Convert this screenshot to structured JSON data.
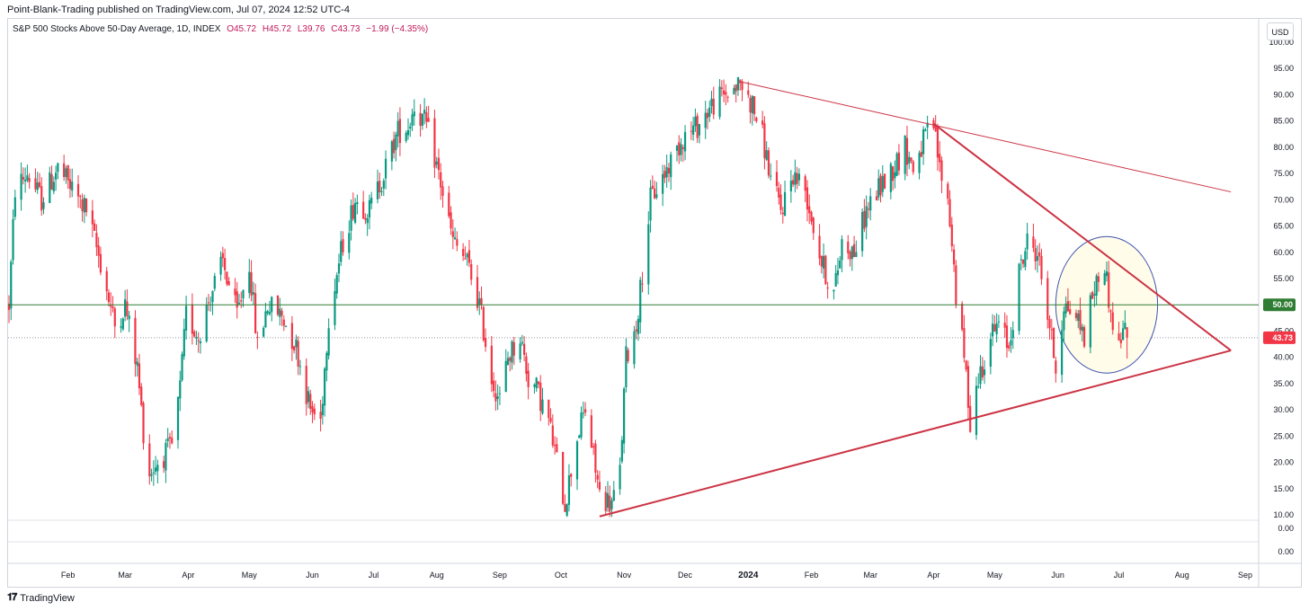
{
  "header": {
    "publisher_line": "Point-Blank-Trading published on TradingView.com, Jul 07, 2024 12:52 UTC-4"
  },
  "legend": {
    "symbol": "S&P 500 Stocks Above 50-Day Average, 1D, INDEX",
    "open": "O45.72",
    "high": "H45.72",
    "low": "L39.76",
    "close": "C43.73",
    "change": "−1.99 (−4.35%)"
  },
  "currency_button": "USD",
  "footer": {
    "brand": "TradingView"
  },
  "colors": {
    "up": "#089981",
    "down": "#f23645",
    "trendline": "#cc3344",
    "level": "#2e7d32",
    "circle": "#4055b0",
    "circle_fill": "#fffbe6"
  },
  "chart_data": {
    "type": "candlestick",
    "title": "S&P 500 Stocks Above 50-Day Average, 1D, INDEX",
    "y_axis": {
      "ticks": [
        "100.00",
        "95.00",
        "90.00",
        "85.00",
        "80.00",
        "75.00",
        "70.00",
        "65.00",
        "60.00",
        "55.00",
        "50.00",
        "45.00",
        "40.00",
        "35.00",
        "30.00",
        "25.00",
        "20.00",
        "15.00",
        "10.00"
      ],
      "ylim": [
        10,
        100
      ]
    },
    "sub_pane_ticks": [
      "0.00",
      "0.00"
    ],
    "x_axis": {
      "ticks": [
        {
          "label": "Feb",
          "bold": false
        },
        {
          "label": "Mar",
          "bold": false
        },
        {
          "label": "Apr",
          "bold": false
        },
        {
          "label": "May",
          "bold": false
        },
        {
          "label": "Jun",
          "bold": false
        },
        {
          "label": "Jul",
          "bold": false
        },
        {
          "label": "Aug",
          "bold": false
        },
        {
          "label": "Sep",
          "bold": false
        },
        {
          "label": "Oct",
          "bold": false
        },
        {
          "label": "Nov",
          "bold": false
        },
        {
          "label": "Dec",
          "bold": false
        },
        {
          "label": "2024",
          "bold": true
        },
        {
          "label": "Feb",
          "bold": false
        },
        {
          "label": "Mar",
          "bold": false
        },
        {
          "label": "Apr",
          "bold": false
        },
        {
          "label": "May",
          "bold": false
        },
        {
          "label": "Jun",
          "bold": false
        },
        {
          "label": "Jul",
          "bold": false
        },
        {
          "label": "Aug",
          "bold": false
        },
        {
          "label": "Sep",
          "bold": false
        }
      ]
    },
    "horizontal_level": {
      "value": 50,
      "label": "50.00"
    },
    "last_price": {
      "value": 43.73,
      "label": "43.73"
    },
    "trendlines": [
      {
        "from": {
          "date": "2023-12-28",
          "value": 92.5
        },
        "to": {
          "date": "2024-08-25",
          "value": 71.5
        }
      },
      {
        "from": {
          "date": "2024-04-01",
          "value": 84.5
        },
        "to": {
          "date": "2024-08-25",
          "value": 41.3
        }
      },
      {
        "from": {
          "date": "2023-10-20",
          "value": 9.7
        },
        "to": {
          "date": "2024-08-25",
          "value": 41.3
        }
      }
    ],
    "highlight_circle": {
      "center_date": "2024-06-25",
      "center_value": 50,
      "radius_days": 25,
      "radius_value": 13
    },
    "waypoints": [
      [
        "2023-01-03",
        50
      ],
      [
        "2023-01-06",
        72
      ],
      [
        "2023-01-12",
        75
      ],
      [
        "2023-01-19",
        70
      ],
      [
        "2023-01-27",
        76
      ],
      [
        "2023-02-03",
        72
      ],
      [
        "2023-02-10",
        68
      ],
      [
        "2023-02-17",
        58
      ],
      [
        "2023-02-24",
        46
      ],
      [
        "2023-03-01",
        50
      ],
      [
        "2023-03-07",
        38
      ],
      [
        "2023-03-10",
        26
      ],
      [
        "2023-03-13",
        18
      ],
      [
        "2023-03-17",
        20
      ],
      [
        "2023-03-24",
        23
      ],
      [
        "2023-03-28",
        34
      ],
      [
        "2023-03-31",
        48
      ],
      [
        "2023-04-06",
        44
      ],
      [
        "2023-04-12",
        52
      ],
      [
        "2023-04-18",
        58
      ],
      [
        "2023-04-25",
        48
      ],
      [
        "2023-05-01",
        58
      ],
      [
        "2023-05-05",
        42
      ],
      [
        "2023-05-10",
        50
      ],
      [
        "2023-05-17",
        48
      ],
      [
        "2023-05-24",
        42
      ],
      [
        "2023-05-31",
        30
      ],
      [
        "2023-06-05",
        28
      ],
      [
        "2023-06-09",
        48
      ],
      [
        "2023-06-16",
        62
      ],
      [
        "2023-06-22",
        70
      ],
      [
        "2023-06-29",
        68
      ],
      [
        "2023-07-06",
        75
      ],
      [
        "2023-07-13",
        83
      ],
      [
        "2023-07-18",
        84
      ],
      [
        "2023-07-21",
        88
      ],
      [
        "2023-07-27",
        84
      ],
      [
        "2023-08-02",
        75
      ],
      [
        "2023-08-09",
        62
      ],
      [
        "2023-08-16",
        58
      ],
      [
        "2023-08-22",
        50
      ],
      [
        "2023-08-28",
        36
      ],
      [
        "2023-09-01",
        32
      ],
      [
        "2023-09-05",
        40
      ],
      [
        "2023-09-11",
        44
      ],
      [
        "2023-09-15",
        36
      ],
      [
        "2023-09-19",
        34
      ],
      [
        "2023-09-25",
        28
      ],
      [
        "2023-10-03",
        12
      ],
      [
        "2023-10-09",
        25
      ],
      [
        "2023-10-13",
        30
      ],
      [
        "2023-10-20",
        14
      ],
      [
        "2023-10-26",
        12
      ],
      [
        "2023-10-30",
        18
      ],
      [
        "2023-11-02",
        40
      ],
      [
        "2023-11-07",
        46
      ],
      [
        "2023-11-14",
        70
      ],
      [
        "2023-11-21",
        75
      ],
      [
        "2023-11-30",
        82
      ],
      [
        "2023-12-07",
        84
      ],
      [
        "2023-12-14",
        88
      ],
      [
        "2023-12-20",
        90
      ],
      [
        "2023-12-28",
        92
      ],
      [
        "2024-01-03",
        88
      ],
      [
        "2024-01-08",
        82
      ],
      [
        "2024-01-12",
        74
      ],
      [
        "2024-01-17",
        68
      ],
      [
        "2024-01-23",
        75
      ],
      [
        "2024-01-29",
        72
      ],
      [
        "2024-02-02",
        65
      ],
      [
        "2024-02-06",
        58
      ],
      [
        "2024-02-12",
        52
      ],
      [
        "2024-02-16",
        62
      ],
      [
        "2024-02-22",
        60
      ],
      [
        "2024-02-28",
        68
      ],
      [
        "2024-03-05",
        72
      ],
      [
        "2024-03-12",
        76
      ],
      [
        "2024-03-18",
        80
      ],
      [
        "2024-03-22",
        76
      ],
      [
        "2024-03-28",
        82
      ],
      [
        "2024-04-01",
        84
      ],
      [
        "2024-04-04",
        76
      ],
      [
        "2024-04-08",
        70
      ],
      [
        "2024-04-10",
        62
      ],
      [
        "2024-04-12",
        52
      ],
      [
        "2024-04-16",
        40
      ],
      [
        "2024-04-19",
        28
      ],
      [
        "2024-04-23",
        36
      ],
      [
        "2024-04-29",
        44
      ],
      [
        "2024-05-03",
        46
      ],
      [
        "2024-05-08",
        42
      ],
      [
        "2024-05-13",
        56
      ],
      [
        "2024-05-17",
        62
      ],
      [
        "2024-05-22",
        60
      ],
      [
        "2024-05-28",
        46
      ],
      [
        "2024-05-31",
        38
      ],
      [
        "2024-06-04",
        50
      ],
      [
        "2024-06-10",
        48
      ],
      [
        "2024-06-14",
        44
      ],
      [
        "2024-06-18",
        52
      ],
      [
        "2024-06-24",
        58
      ],
      [
        "2024-06-27",
        48
      ],
      [
        "2024-07-01",
        42
      ],
      [
        "2024-07-03",
        45.72
      ],
      [
        "2024-07-05",
        43.73
      ]
    ]
  }
}
